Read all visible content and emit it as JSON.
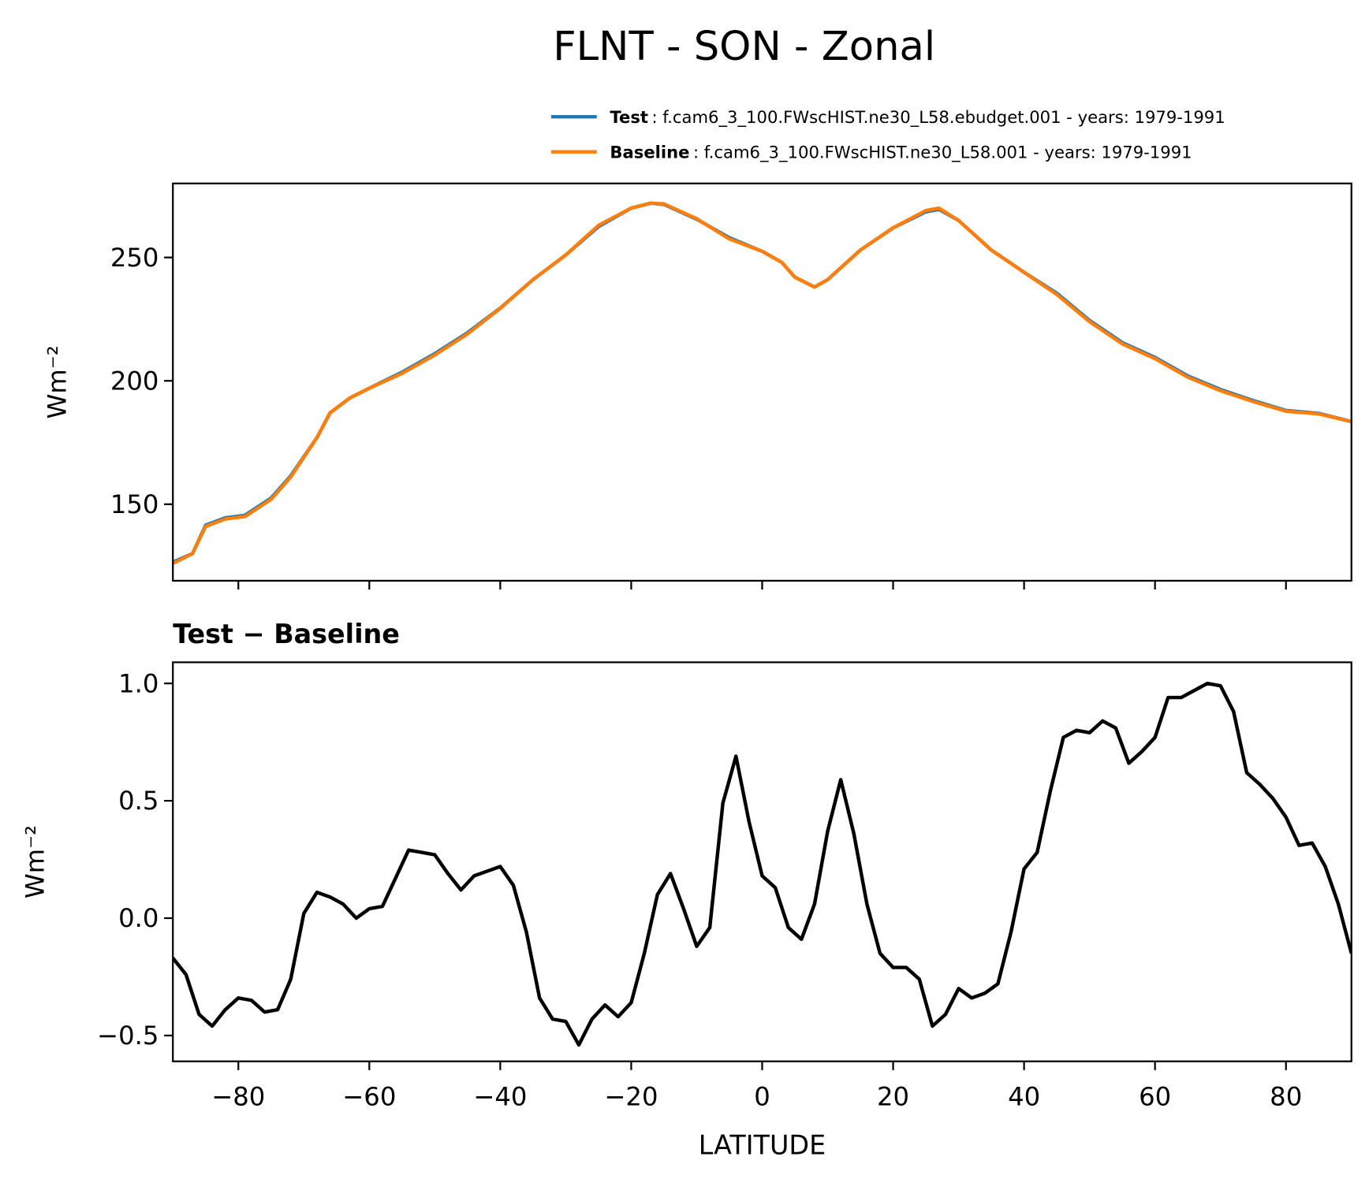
{
  "chart_data": [
    {
      "type": "line",
      "title": "FLNT - SON - Zonal",
      "ylabel": "Wm⁻²",
      "x": [
        -90,
        -87,
        -85,
        -82,
        -79,
        -75,
        -72,
        -68,
        -66,
        -63,
        -60,
        -55,
        -50,
        -45,
        -40,
        -35,
        -30,
        -25,
        -20,
        -17,
        -15,
        -10,
        -5,
        0,
        3,
        5,
        8,
        10,
        15,
        20,
        25,
        27,
        30,
        35,
        40,
        45,
        50,
        55,
        60,
        65,
        70,
        75,
        80,
        85,
        90
      ],
      "series": [
        {
          "name": "Test",
          "description": ": f.cam6_3_100.FWscHIST.ne30_L58.ebudget.001 - years: 1979-1991",
          "color": "#1f77b4",
          "values": [
            126.5,
            130,
            141.5,
            144.5,
            145.5,
            152.5,
            161.5,
            177,
            187,
            193,
            197,
            203.5,
            211,
            219.5,
            229.5,
            241,
            251,
            262.5,
            270,
            272,
            271.5,
            265.5,
            258,
            252.5,
            248,
            242,
            238,
            241,
            253,
            262,
            268.5,
            269.5,
            265,
            253,
            244,
            235.5,
            224.5,
            215.5,
            209.5,
            202,
            196.5,
            192,
            188,
            186.8,
            183.5
          ]
        },
        {
          "name": "Baseline",
          "description": ": f.cam6_3_100.FWscHIST.ne30_L58.001 - years: 1979-1991",
          "color": "#ff7f0e",
          "values": [
            126,
            130,
            141,
            144,
            145,
            152,
            161,
            177,
            187,
            193,
            197,
            203,
            210.5,
            219,
            229.4,
            241,
            251,
            263,
            270,
            272,
            271.7,
            265.7,
            257.5,
            252.5,
            248,
            242,
            238,
            241,
            253,
            262,
            269,
            270,
            265,
            253,
            244,
            235,
            224,
            215,
            209,
            201.5,
            196,
            191.6,
            187.7,
            186.6,
            183.5
          ]
        }
      ],
      "xlim": [
        -90,
        90
      ],
      "xticks": [
        {
          "value": -80,
          "label": "−80"
        },
        {
          "value": -60,
          "label": "−60"
        },
        {
          "value": -40,
          "label": "−40"
        },
        {
          "value": -20,
          "label": "−20"
        },
        0,
        20,
        40,
        60,
        80
      ],
      "ylim": [
        119,
        280
      ],
      "yticks": [
        150,
        200,
        250
      ]
    },
    {
      "type": "line",
      "title": "Test − Baseline",
      "ylabel": "Wm⁻²",
      "xlabel": "LATITUDE",
      "x": [
        -90,
        -88,
        -86,
        -84,
        -82,
        -80,
        -78,
        -76,
        -74,
        -72,
        -70,
        -68,
        -66,
        -64,
        -62,
        -60,
        -58,
        -56,
        -54,
        -52,
        -50,
        -48,
        -46,
        -44,
        -42,
        -40,
        -38,
        -36,
        -34,
        -32,
        -30,
        -28,
        -26,
        -24,
        -22,
        -20,
        -18,
        -16,
        -14,
        -12,
        -10,
        -8,
        -6,
        -4,
        -2,
        0,
        2,
        4,
        6,
        8,
        10,
        12,
        14,
        16,
        18,
        20,
        22,
        24,
        26,
        28,
        30,
        32,
        34,
        36,
        38,
        40,
        42,
        44,
        46,
        48,
        50,
        52,
        54,
        56,
        58,
        60,
        62,
        64,
        66,
        68,
        70,
        72,
        74,
        76,
        78,
        80,
        82,
        84,
        86,
        88,
        90
      ],
      "series": [
        {
          "color": "#000000",
          "values": [
            -0.17,
            -0.24,
            -0.41,
            -0.46,
            -0.39,
            -0.34,
            -0.35,
            -0.4,
            -0.39,
            -0.26,
            0.02,
            0.11,
            0.09,
            0.06,
            0.0,
            0.04,
            0.05,
            0.17,
            0.29,
            0.28,
            0.27,
            0.19,
            0.12,
            0.18,
            0.2,
            0.22,
            0.14,
            -0.06,
            -0.34,
            -0.43,
            -0.44,
            -0.54,
            -0.43,
            -0.37,
            -0.42,
            -0.36,
            -0.15,
            0.1,
            0.19,
            0.04,
            -0.12,
            -0.04,
            0.49,
            0.69,
            0.41,
            0.18,
            0.13,
            -0.04,
            -0.09,
            0.06,
            0.37,
            0.59,
            0.36,
            0.06,
            -0.15,
            -0.21,
            -0.21,
            -0.26,
            -0.46,
            -0.41,
            -0.3,
            -0.34,
            -0.32,
            -0.28,
            -0.06,
            0.21,
            0.28,
            0.54,
            0.77,
            0.8,
            0.79,
            0.84,
            0.81,
            0.66,
            0.71,
            0.77,
            0.94,
            0.94,
            0.97,
            1.0,
            0.99,
            0.88,
            0.62,
            0.57,
            0.51,
            0.43,
            0.31,
            0.32,
            0.22,
            0.06,
            -0.15
          ]
        }
      ],
      "xlim": [
        -90,
        90
      ],
      "xticks": [
        {
          "value": -80,
          "label": "−80"
        },
        {
          "value": -60,
          "label": "−60"
        },
        {
          "value": -40,
          "label": "−40"
        },
        {
          "value": -20,
          "label": "−20"
        },
        0,
        20,
        40,
        60,
        80
      ],
      "ylim": [
        -0.61,
        1.09
      ],
      "yticks": [
        {
          "value": -0.5,
          "label": "−0.5"
        },
        {
          "value": 0,
          "label": "0.0"
        },
        0.5,
        {
          "value": 1,
          "label": "1.0"
        }
      ]
    }
  ]
}
